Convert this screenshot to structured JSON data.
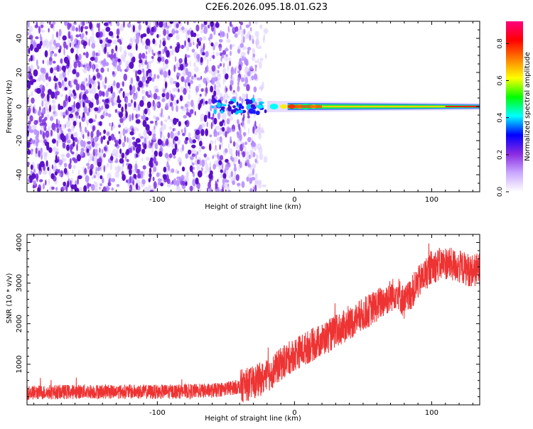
{
  "title": "C2E6.2026.095.18.01.G23",
  "chart_data": [
    {
      "type": "heatmap",
      "title": "C2E6.2026.095.18.01.G23",
      "xlabel": "Height of straight line (km)",
      "ylabel": "Frequency (Hz)",
      "xlim": [
        -195,
        135
      ],
      "ylim": [
        -50,
        50
      ],
      "xticks": [
        -100,
        0,
        100
      ],
      "yticks": [
        -40,
        -20,
        0,
        20,
        40
      ],
      "colorbar": {
        "label": "Normalized spectral amplitude",
        "range": [
          0,
          0.92
        ],
        "ticks": [
          0.0,
          0.2,
          0.4,
          0.6,
          0.8
        ],
        "colors": [
          "#ffffff",
          "#c9a8ff",
          "#8a2be2",
          "#0000ff",
          "#00ffff",
          "#00ff00",
          "#ffff00",
          "#ff8000",
          "#ff0000",
          "#ff0080"
        ]
      },
      "features": {
        "noise_extent_km": [
          -195,
          -28
        ],
        "signal_line_freq_hz": 0,
        "signal_start_km": -60,
        "peak_km": [
          -5,
          20
        ]
      }
    },
    {
      "type": "line",
      "xlabel": "Height of straight line (km)",
      "ylabel": "SNR (10 * v/v)",
      "xlim": [
        -195,
        135
      ],
      "ylim": [
        0,
        4200
      ],
      "xticks": [
        -100,
        0,
        100
      ],
      "yticks": [
        1000,
        2000,
        3000,
        4000
      ],
      "series": [
        {
          "name": "SNR",
          "color": "#ee3333",
          "x": [
            -195,
            -150,
            -100,
            -60,
            -40,
            -30,
            -20,
            -10,
            0,
            20,
            40,
            60,
            75,
            80,
            90,
            100,
            110,
            120,
            130,
            135
          ],
          "y": [
            300,
            330,
            320,
            350,
            450,
            550,
            700,
            1000,
            1250,
            1600,
            2000,
            2450,
            2800,
            2500,
            3000,
            3400,
            3500,
            3400,
            3300,
            3350
          ],
          "noise_amplitude": 180
        }
      ]
    }
  ]
}
